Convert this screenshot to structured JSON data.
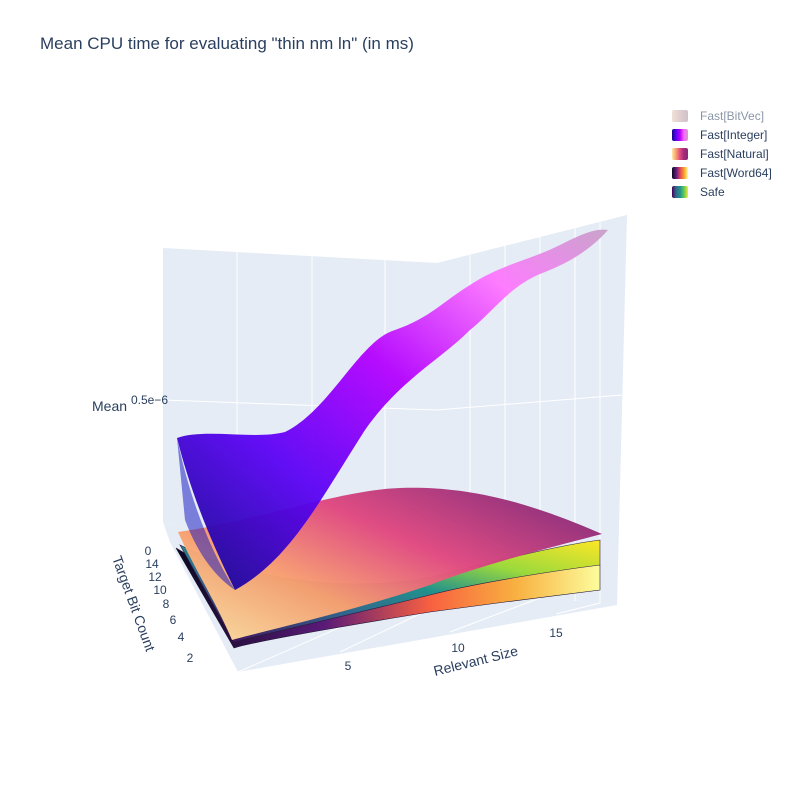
{
  "chart_data": {
    "type": "surface3d",
    "title": "Mean CPU time for evaluating \"thin nm ln\" (in ms)",
    "axes": {
      "x": {
        "label": "Relevant Size",
        "ticks": [
          "5",
          "10",
          "15"
        ]
      },
      "y": {
        "label": "Target Bit Count",
        "ticks": [
          "0",
          "2",
          "4",
          "6",
          "8",
          "10",
          "12",
          "14"
        ]
      },
      "z": {
        "label": "Mean",
        "ticks": [
          "0.5e−6"
        ]
      }
    },
    "legend_placement": "top-right",
    "series": [
      {
        "name": "Fast[BitVec]",
        "colorscale": [
          "#e8c8b8",
          "#c8a8a8",
          "#a890a0"
        ],
        "visible": "legendonly"
      },
      {
        "name": "Fast[Integer]",
        "colorscale": [
          "#0d0887",
          "#5b02f5",
          "#b300ff",
          "#ff66ff",
          "#c8a0c8"
        ]
      },
      {
        "name": "Fast[Natural]",
        "colorscale": [
          "#ffe8a8",
          "#f8a070",
          "#e04880",
          "#a02a78",
          "#8a2a78"
        ]
      },
      {
        "name": "Fast[Word64]",
        "colorscale": [
          "#0b0920",
          "#5a1a78",
          "#e04060",
          "#f8a020",
          "#fcfd9c"
        ]
      },
      {
        "name": "Safe",
        "colorscale": [
          "#440154",
          "#31688e",
          "#21918c",
          "#5ec962",
          "#fde725"
        ]
      }
    ]
  }
}
